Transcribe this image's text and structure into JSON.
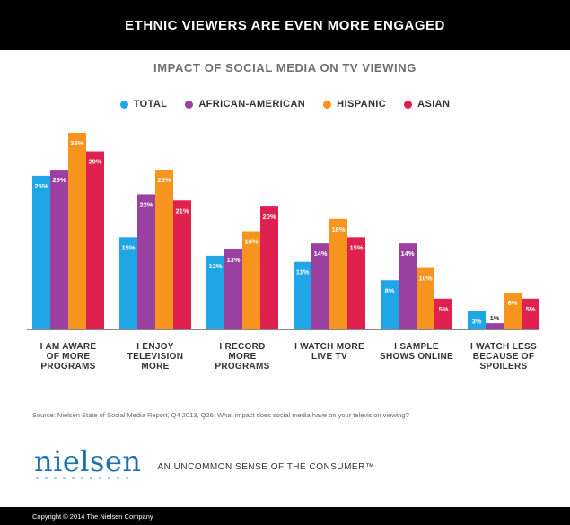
{
  "header": {
    "banner": "ETHNIC VIEWERS ARE EVEN MORE ENGAGED"
  },
  "chart_data": {
    "type": "bar",
    "title": "IMPACT OF SOCIAL MEDIA ON TV VIEWING",
    "categories": [
      [
        "I AM AWARE",
        "OF MORE",
        "PROGRAMS"
      ],
      [
        "I ENJOY",
        "TELEVISION",
        "MORE"
      ],
      [
        "I RECORD",
        "MORE",
        "PROGRAMS"
      ],
      [
        "I WATCH MORE",
        "LIVE TV"
      ],
      [
        "I SAMPLE",
        "SHOWS ONLINE"
      ],
      [
        "I WATCH LESS",
        "BECAUSE OF",
        "SPOILERS"
      ]
    ],
    "series": [
      {
        "name": "TOTAL",
        "color": "#1ea6e6",
        "values": [
          25,
          15,
          12,
          11,
          8,
          3
        ],
        "labels": [
          "25%",
          "15%",
          "12%",
          "11%",
          "8%",
          "3%"
        ]
      },
      {
        "name": "AFRICAN-AMERICAN",
        "color": "#9b3fa0",
        "values": [
          26,
          22,
          13,
          14,
          14,
          1
        ],
        "labels": [
          "26%",
          "22%",
          "13%",
          "14%",
          "14%",
          "1%"
        ]
      },
      {
        "name": "HISPANIC",
        "color": "#f7941d",
        "values": [
          32,
          26,
          16,
          18,
          10,
          6
        ],
        "labels": [
          "32%",
          "26%",
          "16%",
          "18%",
          "10%",
          "6%"
        ]
      },
      {
        "name": "ASIAN",
        "color": "#e0204e",
        "values": [
          29,
          21,
          20,
          15,
          5,
          5
        ],
        "labels": [
          "29%",
          "21%",
          "20%",
          "15%",
          "5%",
          "5%"
        ]
      }
    ],
    "ylim": [
      0,
      32
    ],
    "xlabel": "",
    "ylabel": ""
  },
  "source": "Source: Nielsen State of Social Media Report, Q4 2013, Q26: What impact does social media have on your television viewing?",
  "brand": {
    "logo": "nielsen",
    "tagline": "AN UNCOMMON SENSE OF THE CONSUMER™"
  },
  "footer": {
    "copyright": "Copyright © 2014 The Nielsen Company"
  }
}
